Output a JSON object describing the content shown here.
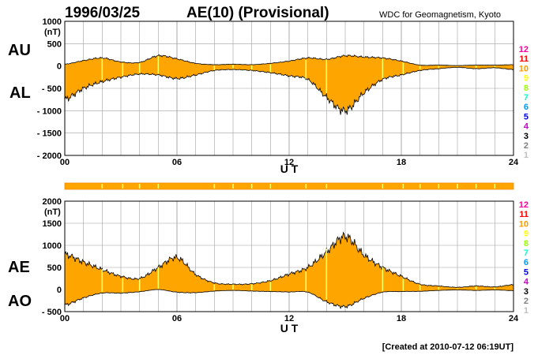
{
  "header": {
    "date": "1996/03/25",
    "title": "AE(10) (Provisional)",
    "source": "WDC for Geomagnetism, Kyoto"
  },
  "footer": {
    "created": "[Created at 2010-07-12 06:19UT]"
  },
  "colors": {
    "fill": "#ffa500",
    "fill_dark": "#f08c00",
    "highlight": "#ffff66",
    "grid": "#a0a0a0",
    "frame": "#000000"
  },
  "station_legend": [
    {
      "label": "12",
      "color": "#ff0099"
    },
    {
      "label": "11",
      "color": "#ff0000"
    },
    {
      "label": "10",
      "color": "#ff9900"
    },
    {
      "label": "9",
      "color": "#ffff00"
    },
    {
      "label": "8",
      "color": "#99ff00"
    },
    {
      "label": "7",
      "color": "#00ffcc"
    },
    {
      "label": "6",
      "color": "#0099ff"
    },
    {
      "label": "5",
      "color": "#0000ff"
    },
    {
      "label": "4",
      "color": "#cc00cc"
    },
    {
      "label": "3",
      "color": "#000000"
    },
    {
      "label": "2",
      "color": "#808080"
    },
    {
      "label": "1",
      "color": "#c0c0c0"
    }
  ],
  "chart_data": [
    {
      "type": "area",
      "series": [
        {
          "name": "AU",
          "x": [
            0,
            1,
            2,
            3,
            4,
            5,
            6,
            7,
            8,
            9,
            10,
            11,
            12,
            13,
            14,
            15,
            16,
            17,
            18,
            19,
            20,
            21,
            22,
            23,
            24
          ],
          "values": [
            40,
            120,
            180,
            90,
            80,
            230,
            160,
            60,
            30,
            40,
            30,
            60,
            110,
            180,
            150,
            230,
            200,
            180,
            110,
            20,
            20,
            10,
            20,
            20,
            30
          ]
        },
        {
          "name": "AL",
          "x": [
            0,
            1,
            2,
            3,
            4,
            5,
            6,
            7,
            8,
            9,
            10,
            11,
            12,
            13,
            14,
            15,
            16,
            17,
            18,
            19,
            20,
            21,
            22,
            23,
            24
          ],
          "values": [
            -750,
            -500,
            -350,
            -250,
            -180,
            -200,
            -280,
            -200,
            -100,
            -80,
            -100,
            -150,
            -220,
            -300,
            -700,
            -1000,
            -600,
            -300,
            -200,
            -100,
            -60,
            -30,
            -60,
            -40,
            -80
          ]
        }
      ],
      "labels": {
        "upper": "AU",
        "lower": "AL"
      },
      "xlabel": "U T",
      "ylabel": "(nT)",
      "xticks": [
        0,
        6,
        12,
        18,
        24
      ],
      "xtick_labels": [
        "00",
        "06",
        "12",
        "18",
        "24"
      ],
      "yticks": [
        1000,
        500,
        0,
        -500,
        -1000,
        -1500,
        -2000
      ],
      "ytick_labels": [
        "1000",
        "500",
        "0",
        "- 500",
        "- 1000",
        "- 1500",
        "- 2000"
      ],
      "xlim": [
        0,
        24
      ],
      "ylim": [
        -2000,
        1000
      ],
      "grid": true
    },
    {
      "type": "area",
      "series": [
        {
          "name": "AE",
          "x": [
            0,
            1,
            2,
            3,
            4,
            5,
            6,
            7,
            8,
            9,
            10,
            11,
            12,
            13,
            14,
            15,
            16,
            17,
            18,
            19,
            20,
            21,
            22,
            23,
            24
          ],
          "values": [
            800,
            620,
            450,
            300,
            250,
            500,
            720,
            340,
            150,
            120,
            130,
            200,
            350,
            500,
            850,
            1200,
            780,
            500,
            300,
            120,
            80,
            50,
            80,
            60,
            110
          ]
        },
        {
          "name": "AO",
          "x": [
            0,
            1,
            2,
            3,
            4,
            5,
            6,
            7,
            8,
            9,
            10,
            11,
            12,
            13,
            14,
            15,
            16,
            17,
            18,
            19,
            20,
            21,
            22,
            23,
            24
          ],
          "values": [
            -350,
            -190,
            -80,
            -80,
            -50,
            0,
            -60,
            -70,
            -35,
            -20,
            -35,
            -45,
            -55,
            -60,
            -275,
            -385,
            -200,
            -60,
            -45,
            -40,
            -20,
            -10,
            -20,
            -10,
            -25
          ]
        }
      ],
      "labels": {
        "upper": "AE",
        "lower": "AO"
      },
      "xlabel": "U T",
      "ylabel": "(nT)",
      "xticks": [
        0,
        6,
        12,
        18,
        24
      ],
      "xtick_labels": [
        "00",
        "06",
        "12",
        "18",
        "24"
      ],
      "yticks": [
        2000,
        1500,
        1000,
        500,
        0,
        -500
      ],
      "ytick_labels": [
        "2000",
        "1500",
        "1000",
        "500",
        "0",
        "- 500"
      ],
      "xlim": [
        0,
        24
      ],
      "ylim": [
        -500,
        2000
      ],
      "grid": true
    }
  ],
  "station_strip_gaps_ut": [
    2.0,
    3.1,
    4.0,
    5.0,
    8.0,
    9.0,
    10.0,
    11.0,
    12.9,
    14.0,
    17.0,
    18.1,
    19.0,
    20.0,
    21.0,
    22.0,
    23.0
  ]
}
